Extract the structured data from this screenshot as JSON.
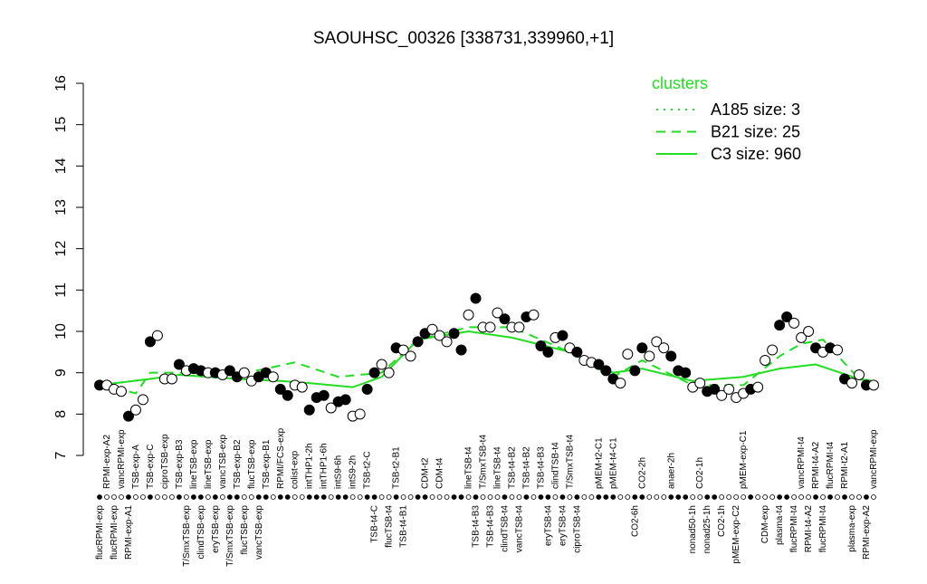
{
  "chart_data": {
    "type": "line",
    "title": "SAOUHSC_00326 [338731,339960,+1]",
    "categories": [
      "flucRPMI-exp",
      "RPMI-exp-A2",
      "flucRPMI-exp",
      "vancRPMI-exp",
      "RPMI-exp-A1",
      "TSB-exp-A",
      null,
      "TSB-exp-C",
      null,
      "ciproTSB-exp",
      null,
      "TSB-exp-B3",
      "T/SmxTSB-exp",
      "lineTSB-exp",
      "clindTSB-exp",
      "lineTSB-exp",
      "eryTSB-exp",
      "vancTSB-exp",
      "T/SmxTSB-exp",
      "TSB-exp-B2",
      "flucTSB-exp",
      "flucTSB-exp",
      "vancTSB-exp",
      "TSB-exp-B1",
      null,
      "RPMI/FCS-exp",
      null,
      "colist-exp",
      null,
      "intTHP1-2h",
      null,
      "intTHP1-6h",
      null,
      "intS9-6h",
      null,
      "intS9-2h",
      null,
      "TSB-t2-C",
      "TSB-t4-C",
      null,
      "flucTSB-t4",
      "TSB-t2-B1",
      "TSB-t4-B1",
      null,
      null,
      "CDM-t2",
      null,
      "CDM-t4",
      null,
      null,
      null,
      "lineTSB-t4",
      "TSB-t4-B3",
      "T/SmxTSB-t4",
      "TSB-t4-B3",
      "lineTSB-t4",
      "clindTSB-t4",
      "TSB-t4-B2",
      "vancTSB-t4",
      "TSB-t4-B2",
      null,
      "TSB-t4-B3",
      "eryTSB-t4",
      "clindTSB-t4",
      "eryTSB-t4",
      "T/SmxTSB-t4",
      "ciproTSB-t4",
      null,
      null,
      "pMEM-t2-C1",
      null,
      "pMEM-t4-C1",
      null,
      null,
      "CO2-6h",
      "CO2-2h",
      null,
      null,
      null,
      "anaer-2h",
      null,
      null,
      "nonad50-1h",
      "CO2-1h",
      "nonad25-1h",
      null,
      "CO2-1h",
      null,
      "pMEM-exp-C2",
      "pMEM-exp-C1",
      null,
      null,
      "CDM-exp",
      null,
      "plasma-t4",
      null,
      "flucRPMI-t4",
      "vancRPMI-t4",
      "RPMI-t4-A2",
      "RPMI-t4-A2",
      "flucRPMI-t4",
      "flucRPMI-t4",
      null,
      "RPMI-t2-A1",
      "plasma-exp",
      null,
      "RPMI-exp-A2",
      "vancRPMI-exp"
    ],
    "values": [
      8.7,
      8.7,
      8.6,
      8.55,
      7.95,
      8.1,
      8.35,
      9.75,
      9.9,
      8.85,
      8.85,
      9.2,
      9.05,
      9.1,
      9.05,
      9.0,
      9.0,
      8.95,
      9.05,
      8.9,
      9.0,
      8.8,
      8.9,
      9.0,
      8.9,
      8.6,
      8.45,
      8.7,
      8.65,
      8.1,
      8.4,
      8.45,
      8.15,
      8.3,
      8.35,
      7.95,
      8.0,
      8.6,
      9.0,
      9.2,
      9.0,
      9.6,
      9.55,
      9.4,
      9.75,
      9.95,
      10.05,
      9.9,
      9.75,
      9.95,
      9.55,
      10.4,
      10.8,
      10.1,
      10.1,
      10.45,
      10.3,
      10.1,
      10.1,
      10.35,
      10.4,
      9.65,
      9.5,
      9.85,
      9.9,
      9.6,
      9.5,
      9.3,
      9.25,
      9.2,
      9.05,
      8.85,
      8.75,
      9.45,
      9.05,
      9.6,
      9.4,
      9.75,
      9.6,
      9.4,
      9.05,
      9.0,
      8.65,
      8.75,
      8.55,
      8.6,
      8.45,
      8.6,
      8.4,
      8.5,
      8.6,
      8.65,
      9.3,
      9.55,
      10.15,
      10.35,
      10.2,
      9.85,
      10.0,
      9.6,
      9.5,
      9.6,
      9.55,
      8.85,
      8.75,
      8.95,
      8.7,
      8.7
    ],
    "filled": [
      true,
      false,
      false,
      false,
      true,
      false,
      false,
      true,
      false,
      false,
      false,
      true,
      false,
      true,
      true,
      false,
      true,
      false,
      true,
      true,
      false,
      false,
      true,
      true,
      false,
      true,
      true,
      false,
      false,
      true,
      true,
      true,
      false,
      true,
      true,
      false,
      false,
      true,
      true,
      false,
      false,
      true,
      false,
      false,
      true,
      true,
      false,
      false,
      false,
      true,
      true,
      false,
      true,
      false,
      false,
      false,
      true,
      false,
      false,
      true,
      false,
      true,
      true,
      false,
      true,
      false,
      true,
      false,
      false,
      true,
      true,
      true,
      false,
      false,
      true,
      true,
      false,
      false,
      false,
      true,
      true,
      true,
      false,
      false,
      true,
      true,
      false,
      false,
      false,
      false,
      true,
      false,
      false,
      false,
      true,
      true,
      false,
      false,
      false,
      true,
      false,
      true,
      false,
      true,
      false,
      false,
      true,
      false
    ],
    "ylim": [
      7,
      16
    ],
    "yticks": [
      7,
      8,
      9,
      10,
      11,
      12,
      13,
      14,
      15,
      16
    ],
    "legend_title": "clusters",
    "series": [
      {
        "name": "A185 size: 3",
        "color": "#22dd22",
        "dash": "dotted",
        "x": [
          1,
          8,
          12,
          20,
          26
        ],
        "values": [
          8.7,
          8.85,
          8.95,
          8.85,
          8.8
        ]
      },
      {
        "name": "B21 size: 25",
        "color": "#22dd22",
        "dash": "dashed",
        "x": [
          1,
          6,
          8,
          12,
          20,
          28,
          34,
          40,
          45,
          52,
          58,
          66,
          72,
          76,
          83,
          90,
          95,
          98,
          101,
          106,
          108
        ],
        "values": [
          8.75,
          8.5,
          9.0,
          9.0,
          8.95,
          9.25,
          8.9,
          9.0,
          9.8,
          10.1,
          10.1,
          9.5,
          8.9,
          9.3,
          8.7,
          8.7,
          9.4,
          9.7,
          9.8,
          8.85,
          8.8
        ]
      },
      {
        "name": "C3 size: 960",
        "color": "#22dd22",
        "dash": "solid",
        "x": [
          1,
          8,
          12,
          20,
          26,
          30,
          36,
          40,
          45,
          52,
          58,
          66,
          72,
          76,
          83,
          90,
          95,
          100,
          106,
          108
        ],
        "values": [
          8.7,
          8.85,
          8.95,
          8.85,
          8.8,
          8.75,
          8.65,
          8.9,
          9.8,
          10.0,
          9.85,
          9.5,
          9.0,
          9.1,
          8.8,
          8.9,
          9.1,
          9.2,
          8.85,
          8.75
        ]
      }
    ]
  }
}
